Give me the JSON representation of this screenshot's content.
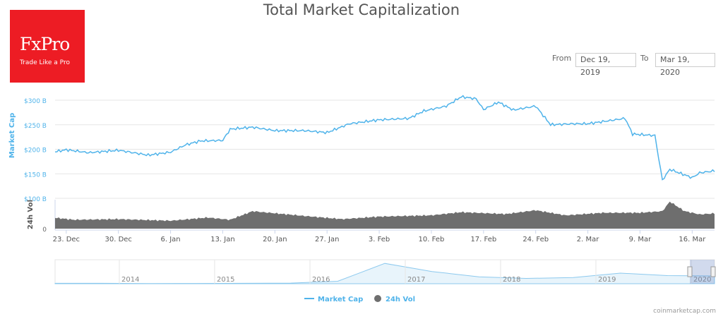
{
  "chart_data": {
    "type": "line",
    "title": "Total Market Capitalization",
    "range_selector": {
      "from_label": "From",
      "from": "Dec 19, 2019",
      "to_label": "To",
      "to": "Mar 19, 2020"
    },
    "y_axis": {
      "label": "Market Cap",
      "ticks": [
        "$300 B",
        "$250 B",
        "$200 B",
        "$150 B",
        "$100 B"
      ],
      "tick_values": [
        300,
        250,
        200,
        150,
        100
      ],
      "ylim": [
        100,
        300
      ]
    },
    "y_axis_vol": {
      "label": "24h Vol",
      "ticks": [
        "0"
      ]
    },
    "x_ticks": [
      "23. Dec",
      "30. Dec",
      "6. Jan",
      "13. Jan",
      "20. Jan",
      "27. Jan",
      "3. Feb",
      "10. Feb",
      "17. Feb",
      "24. Feb",
      "2. Mar",
      "9. Mar",
      "16. Mar"
    ],
    "x_tick_days": [
      3,
      10,
      17,
      24,
      31,
      38,
      45,
      52,
      59,
      66,
      73,
      80,
      87
    ],
    "series": [
      {
        "name": "Market Cap",
        "unit": "B USD",
        "color": "#4fb3ea",
        "days": [
          0,
          3,
          6,
          10,
          14,
          17,
          19,
          21,
          24,
          25,
          28,
          31,
          35,
          38,
          41,
          45,
          49,
          51,
          54,
          56,
          58,
          59,
          61,
          63,
          66,
          68,
          71,
          73,
          78,
          79,
          82,
          83,
          84,
          87,
          88,
          90
        ],
        "values": [
          191,
          199,
          193,
          198,
          188,
          194,
          209,
          217,
          218,
          241,
          245,
          238,
          238,
          234,
          252,
          260,
          263,
          278,
          288,
          307,
          303,
          281,
          296,
          280,
          288,
          250,
          252,
          252,
          263,
          231,
          228,
          137,
          159,
          142,
          152,
          156
        ]
      },
      {
        "name": "24h Vol",
        "unit": "B USD",
        "color": "#6e6e6e",
        "days": [
          0,
          4,
          10,
          17,
          22,
          25,
          28,
          35,
          40,
          45,
          52,
          56,
          62,
          66,
          70,
          75,
          80,
          83,
          84,
          86,
          88,
          90
        ],
        "values": [
          38,
          28,
          30,
          25,
          35,
          28,
          55,
          40,
          30,
          38,
          42,
          52,
          46,
          58,
          42,
          50,
          50,
          55,
          85,
          55,
          45,
          48
        ]
      }
    ],
    "navigator": {
      "years": [
        "2014",
        "2015",
        "2016",
        "2017",
        "2018",
        "2019",
        "2020"
      ],
      "values": [
        10,
        10,
        6,
        7,
        10,
        15,
        60,
        500,
        300,
        170,
        130,
        150,
        260,
        200,
        190
      ]
    },
    "legend": [
      "Market Cap",
      "24h Vol"
    ],
    "legend_position": "bottom",
    "grid": true
  },
  "logo": {
    "brand": "FxPro",
    "tagline": "Trade Like a Pro"
  },
  "credit": "coinmarketcap.com"
}
